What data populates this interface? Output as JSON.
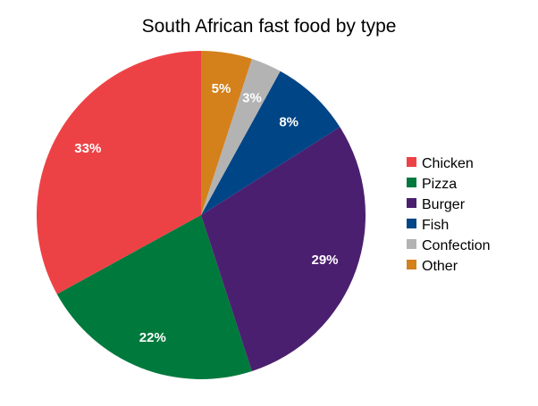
{
  "chart_data": {
    "type": "pie",
    "title": "South African fast food by type",
    "start": "12 o'clock",
    "direction": "counter-clockwise",
    "legend_placement": "right",
    "slices": [
      {
        "label": "Chicken",
        "value": 33,
        "display": "33%",
        "color": "#ed4245"
      },
      {
        "label": "Pizza",
        "value": 22,
        "display": "22%",
        "color": "#00793d"
      },
      {
        "label": "Burger",
        "value": 29,
        "display": "29%",
        "color": "#4b1f6f"
      },
      {
        "label": "Fish",
        "value": 8,
        "display": "8%",
        "color": "#004586"
      },
      {
        "label": "Confection",
        "value": 3,
        "display": "3%",
        "color": "#b3b3b3"
      },
      {
        "label": "Other",
        "value": 5,
        "display": "5%",
        "color": "#d4801b"
      }
    ]
  }
}
